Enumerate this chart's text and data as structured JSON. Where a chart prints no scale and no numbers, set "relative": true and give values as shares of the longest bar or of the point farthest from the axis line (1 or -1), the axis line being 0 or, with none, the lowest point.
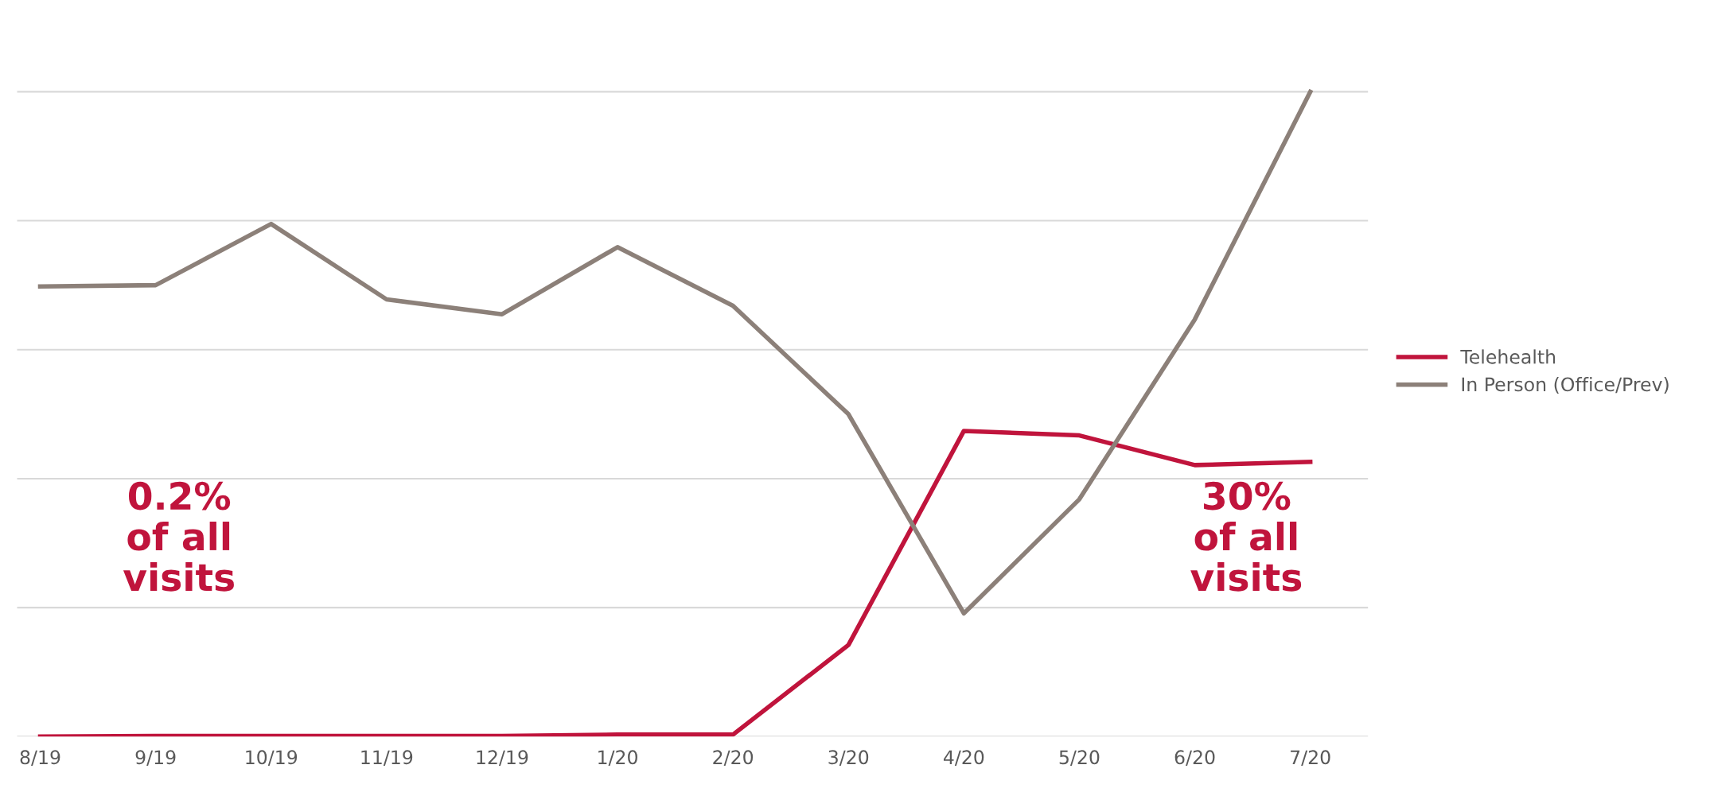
{
  "chart_data": {
    "type": "line",
    "relative": true,
    "grid": "y",
    "legend": "right",
    "categories": [
      "8/19",
      "9/19",
      "10/19",
      "11/19",
      "12/19",
      "1/20",
      "2/20",
      "3/20",
      "4/20",
      "5/20",
      "6/20",
      "7/20"
    ],
    "series": [
      {
        "name": "Telehealth",
        "color": "#c0143c",
        "values": [
          0.0,
          0.001,
          0.001,
          0.001,
          0.001,
          0.003,
          0.003,
          0.142,
          0.474,
          0.467,
          0.421,
          0.426
        ]
      },
      {
        "name": "In Person (Office/Prev)",
        "color": "#8c8079",
        "values": [
          0.698,
          0.7,
          0.795,
          0.678,
          0.655,
          0.759,
          0.668,
          0.5,
          0.191,
          0.368,
          0.647,
          1.0
        ]
      }
    ],
    "annotations": [
      "0.2%\nof all\nvisits",
      "30%\nof all\nvisits"
    ]
  }
}
